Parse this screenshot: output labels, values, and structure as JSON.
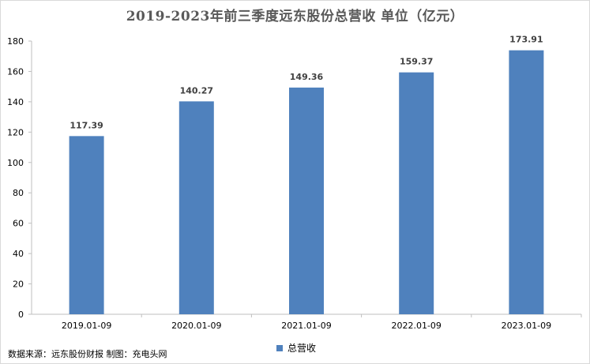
{
  "chart_data": {
    "type": "bar",
    "title": "2019-2023年前三季度远东股份总营收 单位（亿元）",
    "categories": [
      "2019.01-09",
      "2020.01-09",
      "2021.01-09",
      "2022.01-09",
      "2023.01-09"
    ],
    "series": [
      {
        "name": "总营收",
        "values": [
          117.39,
          140.27,
          149.36,
          159.37,
          173.91
        ],
        "color": "#4f81bd"
      }
    ],
    "data_labels": [
      "117.39",
      "140.27",
      "149.36",
      "159.37",
      "173.91"
    ],
    "yticks": [
      0,
      20,
      40,
      60,
      80,
      100,
      120,
      140,
      160,
      180
    ],
    "ylim": [
      0,
      180
    ],
    "xlabel": "",
    "ylabel": "",
    "grid": false,
    "legend": "bottom-center"
  },
  "source_text": "数据来源：远东股份财报 制图：充电头网"
}
